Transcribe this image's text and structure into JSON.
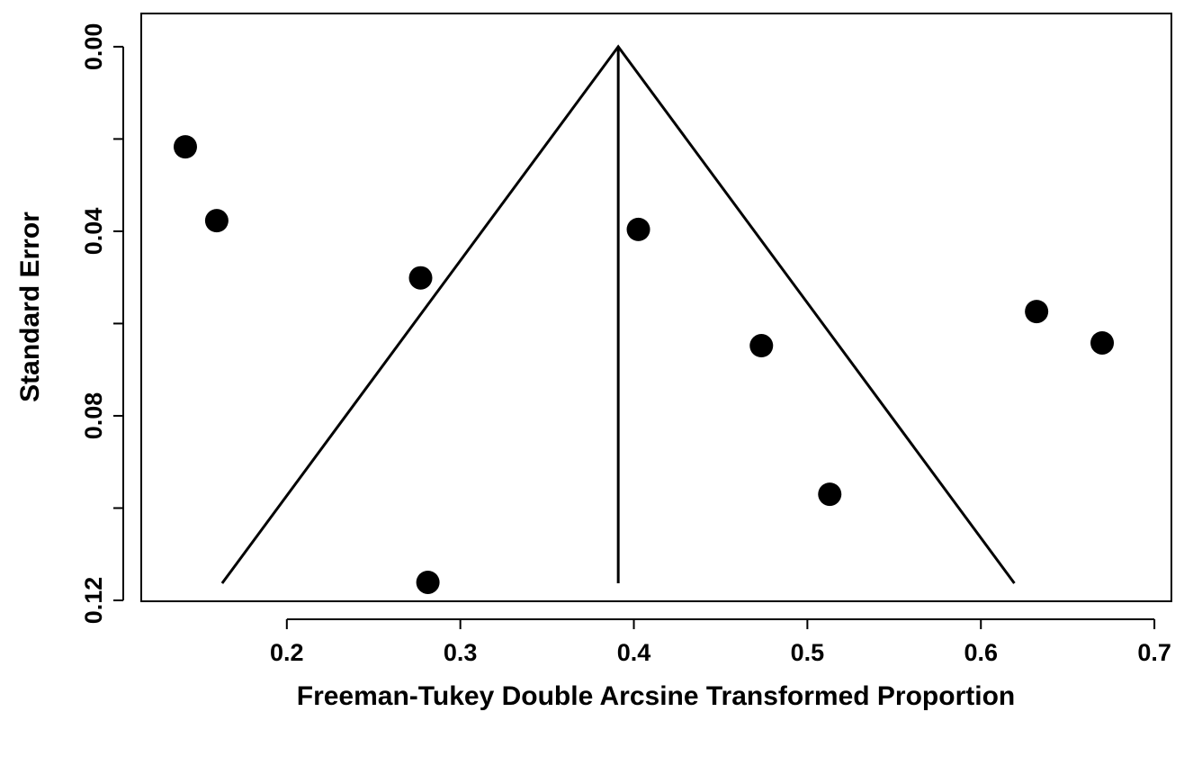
{
  "chart_data": {
    "type": "scatter",
    "x_label": "Freeman-Tukey Double Arcsine Transformed Proportion",
    "y_label": "Standard Error",
    "x": [
      0.1415,
      0.1596,
      0.2771,
      0.4026,
      0.4735,
      0.5129,
      0.2813,
      0.6321,
      0.6699
    ],
    "values": [
      0.0217,
      0.0377,
      0.0501,
      0.0396,
      0.0648,
      0.097,
      0.1161,
      0.0574,
      0.0642
    ],
    "color": "#000000",
    "xlim": [
      0.1161,
      0.7098
    ],
    "ylim": [
      0.1202,
      -0.0072
    ],
    "xticks": [
      0.2,
      0.3,
      0.4,
      0.5,
      0.6,
      0.7
    ],
    "yticks": [
      {
        "value": 0,
        "label": "0.00"
      },
      {
        "value": 0.02,
        "label": null
      },
      {
        "value": 0.04,
        "label": "0.04"
      },
      {
        "value": 0.06,
        "label": null
      },
      {
        "value": 0.08,
        "label": "0.08"
      },
      {
        "value": 0.1,
        "label": null
      },
      {
        "value": 0.12,
        "label": "0.12"
      }
    ],
    "funnel": {
      "x": [
        0.1627,
        0.391,
        0.6193
      ],
      "y": [
        0.1163,
        0,
        0.1163
      ]
    },
    "reference_line": {
      "x": [
        0.391,
        0.391
      ],
      "y": [
        0,
        0.1163
      ]
    }
  }
}
